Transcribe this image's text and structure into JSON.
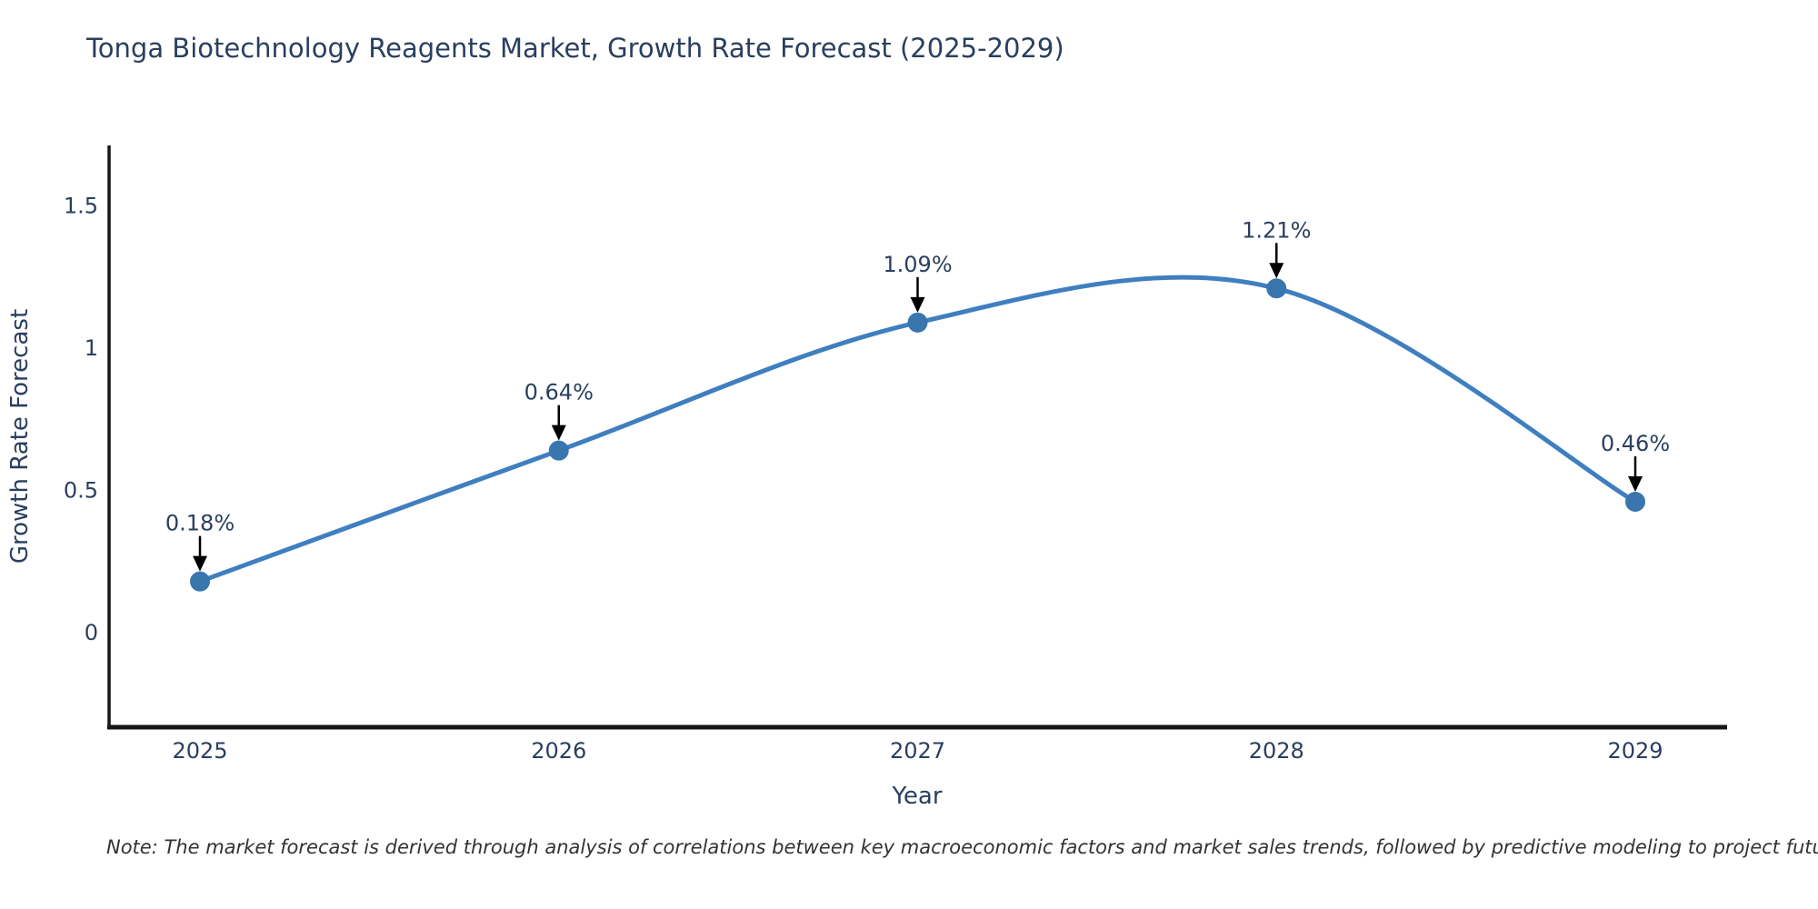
{
  "title": "Tonga Biotechnology Reagents Market, Growth Rate Forecast (2025-2029)",
  "note": "Note: The market forecast is derived through analysis of correlations between key macroeconomic factors and market sales trends, followed by predictive modeling to project future sales",
  "chart_data": {
    "type": "line",
    "title": "Tonga Biotechnology Reagents Market, Growth Rate Forecast (2025-2029)",
    "xlabel": "Year",
    "ylabel": "Growth Rate Forecast",
    "categories": [
      "2025",
      "2026",
      "2027",
      "2028",
      "2029"
    ],
    "values": [
      0.18,
      0.64,
      1.09,
      1.21,
      0.46
    ],
    "point_labels": [
      "0.18%",
      "0.64%",
      "1.09%",
      "1.21%",
      "0.46%"
    ],
    "yticks": [
      0,
      0.5,
      1,
      1.5
    ],
    "ytick_labels": [
      "0",
      "0.5",
      "1",
      "1.5"
    ],
    "ylim": [
      -0.34,
      1.72
    ],
    "grid": false,
    "legend_position": "none",
    "line_style": "spline",
    "colors": {
      "line": "#3f7fbf",
      "marker": "#3a76ae",
      "arrow": "#000000",
      "axis_line": "#161616",
      "tick_text": "#2a3f5f",
      "label_text": "#2a3f5f",
      "annotation_text": "#2a3f5f"
    }
  }
}
